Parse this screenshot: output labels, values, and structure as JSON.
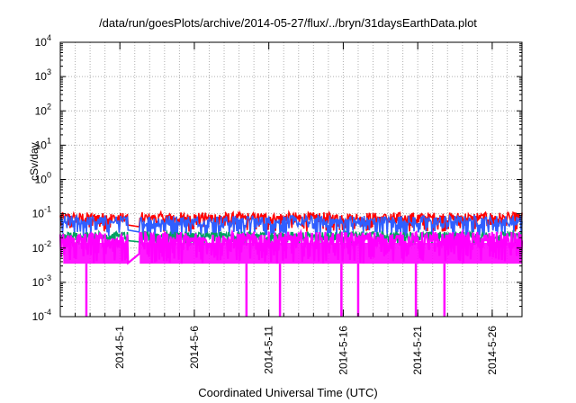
{
  "chart_data": {
    "type": "line",
    "title": "/data/run/goesPlots/archive/2014-05-27/flux/../bryn/31daysEarthData.plot",
    "xlabel": "Coordinated Universal Time (UTC)",
    "ylabel": "cSv/day",
    "y_scale": "log",
    "ylim": [
      0.0001,
      10000
    ],
    "xlim": [
      "2014-04-27",
      "2014-05-28"
    ],
    "y_ticks": [
      {
        "value": 0.0001,
        "base": "10",
        "exp": "-4"
      },
      {
        "value": 0.001,
        "base": "10",
        "exp": "-3"
      },
      {
        "value": 0.01,
        "base": "10",
        "exp": "-2"
      },
      {
        "value": 0.1,
        "base": "10",
        "exp": "-1"
      },
      {
        "value": 1,
        "base": "10",
        "exp": "0"
      },
      {
        "value": 10,
        "base": "10",
        "exp": "1"
      },
      {
        "value": 100,
        "base": "10",
        "exp": "2"
      },
      {
        "value": 1000,
        "base": "10",
        "exp": "3"
      },
      {
        "value": 10000,
        "base": "10",
        "exp": "4"
      }
    ],
    "x_ticks": [
      "2014-5-1",
      "2014-5-6",
      "2014-5-11",
      "2014-5-16",
      "2014-5-21",
      "2014-5-26"
    ],
    "grid": true,
    "legend": "none",
    "data_gap": [
      "2014-05-01",
      "2014-05-02"
    ],
    "series": [
      {
        "color": "#ff0000",
        "y_min": 0.03,
        "y_max": 0.11
      },
      {
        "color": "#2f5fff",
        "y_min": 0.02,
        "y_max": 0.09
      },
      {
        "color": "#00a060",
        "y_min": 0.012,
        "y_max": 0.03
      },
      {
        "color": "#ff00ff",
        "y_min": 0.0035,
        "y_max": 0.03,
        "dropouts_to": 0.0001
      }
    ]
  }
}
